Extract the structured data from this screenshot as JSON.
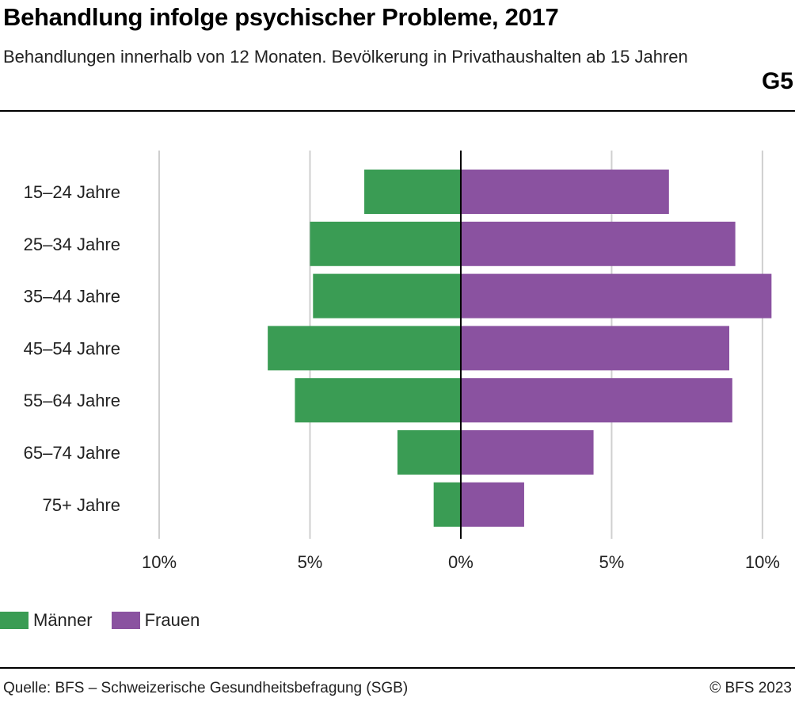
{
  "header": {
    "title": "Behandlung infolge psychischer Probleme, 2017",
    "subtitle": "Behandlungen innerhalb von 12 Monaten. Bevölkerung in Privathaushalten ab 15 Jahren",
    "figure_id": "G5"
  },
  "chart_data": {
    "type": "bar",
    "orientation": "horizontal-diverging",
    "categories": [
      "15–24 Jahre",
      "25–34 Jahre",
      "35–44 Jahre",
      "45–54 Jahre",
      "55–64 Jahre",
      "65–74 Jahre",
      "75+ Jahre"
    ],
    "series": [
      {
        "name": "Männer",
        "color": "#3a9c54",
        "side": "left",
        "values": [
          3.2,
          5.0,
          4.9,
          6.4,
          5.5,
          2.1,
          0.9
        ]
      },
      {
        "name": "Frauen",
        "color": "#8a52a0",
        "side": "right",
        "values": [
          6.9,
          9.1,
          10.3,
          8.9,
          9.0,
          4.4,
          2.1
        ]
      }
    ],
    "xlim": [
      -10,
      11
    ],
    "xticks": [
      {
        "value": -10,
        "label": "10%"
      },
      {
        "value": -5,
        "label": "5%"
      },
      {
        "value": 0,
        "label": "0%"
      },
      {
        "value": 5,
        "label": "5%"
      },
      {
        "value": 10,
        "label": "10%"
      }
    ],
    "grid": true,
    "legend_position": "bottom-left"
  },
  "legend": {
    "men_label": "Männer",
    "women_label": "Frauen",
    "men_color": "#3a9c54",
    "women_color": "#8a52a0"
  },
  "footer": {
    "source": "Quelle: BFS – Schweizerische Gesundheitsbefragung (SGB)",
    "copyright": "© BFS 2023"
  }
}
